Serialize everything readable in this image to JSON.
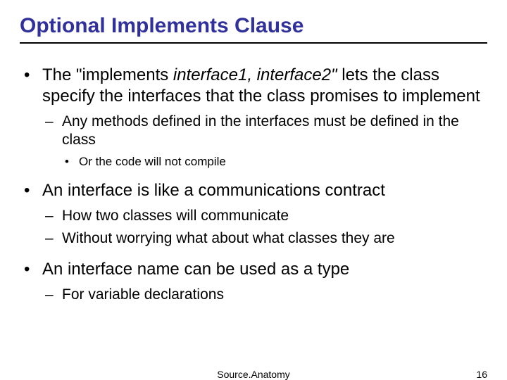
{
  "title": "Optional Implements Clause",
  "title_color": "#31319c",
  "title_fontsize": 30,
  "body_font": "Arial",
  "background_color": "#ffffff",
  "bullets": {
    "b1": {
      "pre": "The \"implements ",
      "italic": "interface1, interface2\"",
      "post": " lets the class specify the interfaces that the class promises to implement",
      "sub": {
        "s1": "Any methods defined in the interfaces must be defined in the class",
        "s1a": "Or the code will not compile"
      }
    },
    "b2": {
      "text": "An interface is like a communications contract",
      "sub": {
        "s1": "How two classes will communicate",
        "s2": "Without worrying what about what classes they are"
      }
    },
    "b3": {
      "text": "An interface name can be used as a type",
      "sub": {
        "s1": "For variable declarations"
      }
    }
  },
  "footer": {
    "center": "Source.Anatomy",
    "page": "16"
  },
  "fontsizes": {
    "lvl1": 24,
    "lvl2": 21,
    "lvl3": 17,
    "footer": 14
  }
}
